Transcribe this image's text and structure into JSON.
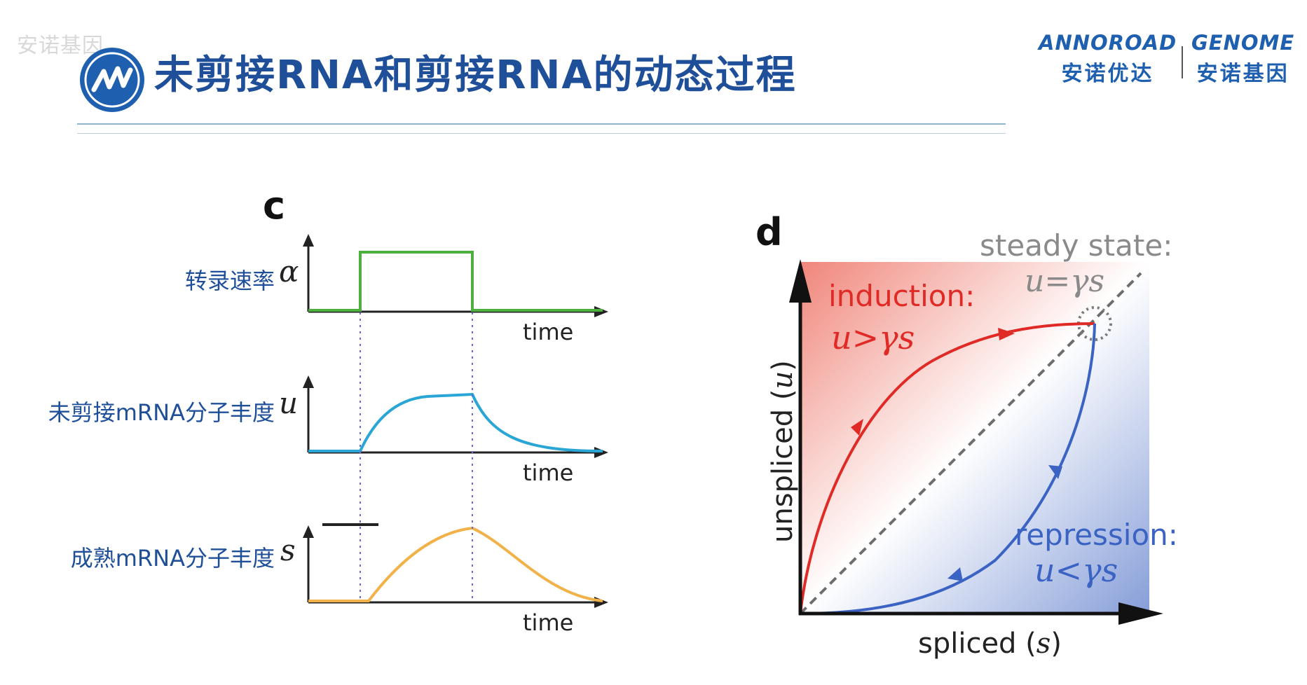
{
  "watermark": "安诺基因",
  "slide": {
    "title": "未剪接RNA和剪接RNA的动态过程",
    "logo_icon": "wave-logo-icon"
  },
  "brands": [
    {
      "en": "ANNOROAD",
      "cn": "安诺优达"
    },
    {
      "en": "GENOME",
      "cn": "安诺基因"
    }
  ],
  "panel_c": {
    "letter": "c",
    "rows": [
      {
        "label": "转录速率",
        "symbol": "α",
        "xlabel": "time",
        "color": "#4caf3e"
      },
      {
        "label": "未剪接mRNA分子丰度",
        "symbol": "u",
        "xlabel": "time",
        "color": "#2aa6d6"
      },
      {
        "label": "成熟mRNA分子丰度",
        "symbol": "s",
        "xlabel": "time",
        "color": "#f2b24a"
      }
    ]
  },
  "panel_d": {
    "letter": "d",
    "steady_title": "steady state:",
    "steady_eq": "u=γs",
    "induction_title": "induction:",
    "induction_eq": "u>γs",
    "repression_title": "repression:",
    "repression_eq": "u<γs",
    "xlabel_text": "spliced (",
    "xlabel_var": "s",
    "ylabel_text": "unspliced (",
    "ylabel_var": "u",
    "close_paren": ")",
    "induction_color": "#e02a26",
    "repression_color": "#3b63c4",
    "steady_color": "#8a8a8a"
  }
}
